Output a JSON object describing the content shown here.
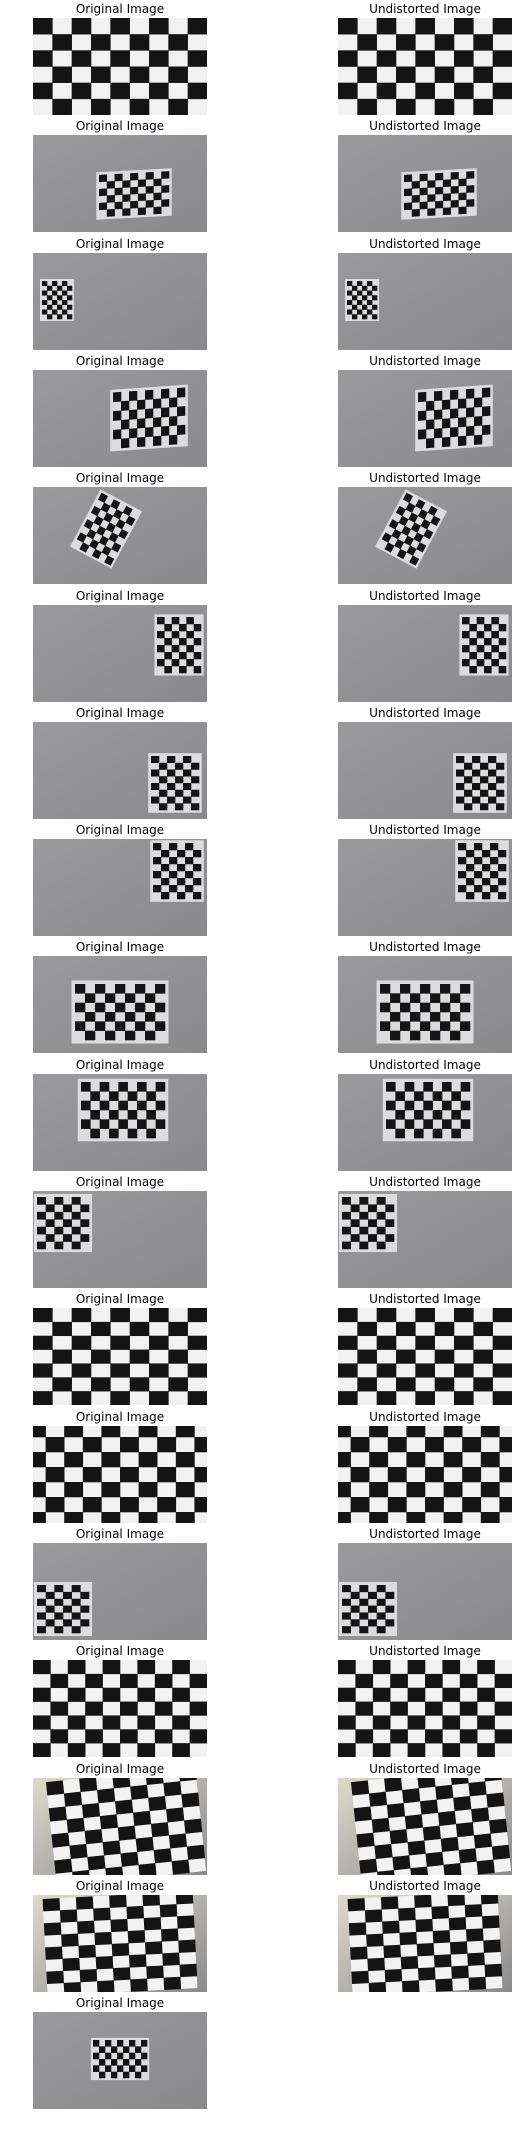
{
  "figure": {
    "labels": {
      "original": "Original Image",
      "undistorted": "Undistorted Image"
    },
    "colors": {
      "page": "#ffffff",
      "title_text": "#000000",
      "dark_square": "#141414",
      "light_square_closeup": "#f2f2f2",
      "backdrop_gray": "#9a9a9c",
      "backdrop_cream": "#ddd9cc",
      "sheet_white": "#dcdcdf"
    },
    "images": [
      {
        "row": 1,
        "scene": "closeup",
        "original": "Original Image",
        "undistorted": "Undistorted Image"
      },
      {
        "row": 2,
        "scene": "board-center-right",
        "original": "Original Image",
        "undistorted": "Undistorted Image"
      },
      {
        "row": 3,
        "scene": "board-small-left",
        "original": "Original Image",
        "undistorted": "Undistorted Image"
      },
      {
        "row": 4,
        "scene": "board-right",
        "original": "Original Image",
        "undistorted": "Undistorted Image"
      },
      {
        "row": 5,
        "scene": "board-tilted",
        "original": "Original Image",
        "undistorted": "Undistorted Image"
      },
      {
        "row": 6,
        "scene": "board-far-right",
        "original": "Original Image",
        "undistorted": "Undistorted Image"
      },
      {
        "row": 7,
        "scene": "board-far-right-low",
        "original": "Original Image",
        "undistorted": "Undistorted Image"
      },
      {
        "row": 8,
        "scene": "board-far-right-high",
        "original": "Original Image",
        "undistorted": "Undistorted Image"
      },
      {
        "row": 9,
        "scene": "board-center",
        "original": "Original Image",
        "undistorted": "Undistorted Image"
      },
      {
        "row": 10,
        "scene": "board-center-high",
        "original": "Original Image",
        "undistorted": "Undistorted Image"
      },
      {
        "row": 11,
        "scene": "board-left",
        "original": "Original Image",
        "undistorted": "Undistorted Image"
      },
      {
        "row": 12,
        "scene": "closeup-wide",
        "original": "Original Image",
        "undistorted": "Undistorted Image"
      },
      {
        "row": 13,
        "scene": "closeup-barrel",
        "original": "Original Image",
        "undistorted": "Undistorted Image"
      },
      {
        "row": 14,
        "scene": "board-left-low",
        "original": "Original Image",
        "undistorted": "Undistorted Image"
      },
      {
        "row": 15,
        "scene": "closeup-perspective",
        "original": "Original Image",
        "undistorted": "Undistorted Image"
      },
      {
        "row": 16,
        "scene": "closeup-angled",
        "original": "Original Image",
        "undistorted": "Undistorted Image"
      },
      {
        "row": 17,
        "scene": "closeup-angled-2",
        "original": "Original Image",
        "undistorted": "Undistorted Image"
      },
      {
        "row": 18,
        "scene": "board-small-center",
        "original": "Original Image",
        "undistorted": null
      }
    ]
  }
}
